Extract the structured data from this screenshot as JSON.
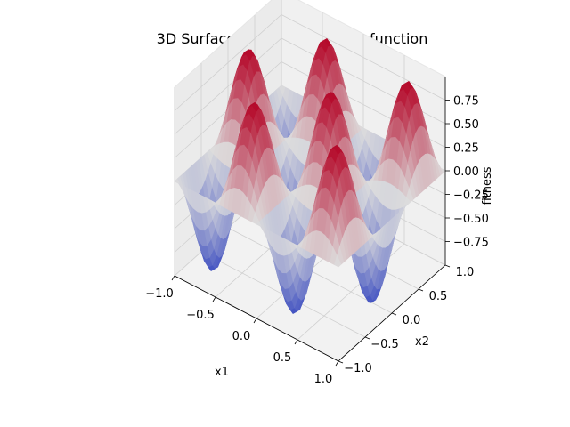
{
  "chart_data": {
    "type": "surface3d",
    "title": "3D Surface plot of the fitness function",
    "xlabel": "x1",
    "ylabel": "x2",
    "zlabel": "fitness",
    "xlim": [
      -1,
      1
    ],
    "ylim": [
      -1,
      1
    ],
    "zlim": [
      -1,
      1
    ],
    "x_ticks": [
      "−1.0",
      "−0.5",
      "0.0",
      "0.5",
      "1.0"
    ],
    "y_ticks": [
      "−1.0",
      "−0.5",
      "0.0",
      "0.5",
      "1.0"
    ],
    "z_ticks": [
      "−0.75",
      "−0.50",
      "−0.25",
      "0.00",
      "0.25",
      "0.50",
      "0.75"
    ],
    "x_tick_values": [
      -1,
      -0.5,
      0,
      0.5,
      1
    ],
    "y_tick_values": [
      -1,
      -0.5,
      0,
      0.5,
      1
    ],
    "z_tick_values": [
      -0.75,
      -0.5,
      -0.25,
      0,
      0.25,
      0.5,
      0.75
    ],
    "function": "fitness = sin(2*pi*x1) * cos(1.5*pi*x2)",
    "colormap": "coolwarm",
    "colormap_low": "#3b4cc0",
    "colormap_mid": "#dddddd",
    "colormap_high": "#b40426",
    "grid": true,
    "pane_color": "#f2f2f2"
  }
}
